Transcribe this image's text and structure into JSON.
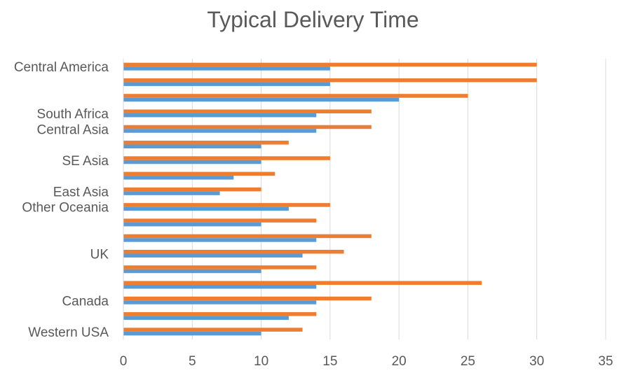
{
  "chart_data": {
    "type": "bar",
    "orientation": "horizontal",
    "title": "Typical Delivery Time",
    "xlim": [
      0,
      35
    ],
    "x_ticks": [
      0,
      5,
      10,
      15,
      20,
      25,
      30,
      35
    ],
    "grid": true,
    "legend": "none",
    "rows": [
      {
        "label": "Western USA",
        "values": [
          10,
          13
        ]
      },
      {
        "label": "",
        "values": [
          12,
          14
        ]
      },
      {
        "label": "Canada",
        "values": [
          14,
          18
        ]
      },
      {
        "label": "",
        "values": [
          14,
          26
        ]
      },
      {
        "label": "",
        "values": [
          10,
          14
        ]
      },
      {
        "label": "UK",
        "values": [
          13,
          16
        ]
      },
      {
        "label": "",
        "values": [
          14,
          18
        ]
      },
      {
        "label": "",
        "values": [
          10,
          14
        ]
      },
      {
        "label": "Other Oceania",
        "values": [
          12,
          15
        ]
      },
      {
        "label": "East Asia",
        "values": [
          7,
          10
        ]
      },
      {
        "label": "",
        "values": [
          8,
          11
        ]
      },
      {
        "label": "SE Asia",
        "values": [
          10,
          15
        ]
      },
      {
        "label": "",
        "values": [
          10,
          12
        ]
      },
      {
        "label": "Central Asia",
        "values": [
          14,
          18
        ]
      },
      {
        "label": "South Africa",
        "values": [
          14,
          18
        ]
      },
      {
        "label": "",
        "values": [
          20,
          25
        ]
      },
      {
        "label": "",
        "values": [
          15,
          30
        ]
      },
      {
        "label": "Central America",
        "values": [
          15,
          30
        ]
      }
    ],
    "series": [
      {
        "color": "#5B9BD5"
      },
      {
        "color": "#ED7D31"
      }
    ]
  }
}
